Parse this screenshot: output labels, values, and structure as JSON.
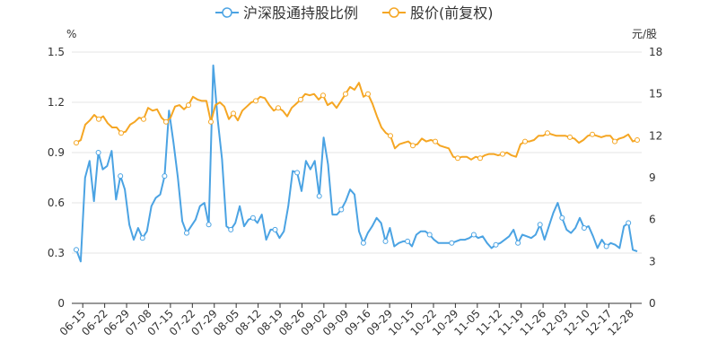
{
  "chart_data": {
    "type": "line",
    "title": "",
    "left_unit": "%",
    "right_unit": "元/股",
    "left_axis": {
      "min": 0,
      "max": 1.5,
      "ticks": [
        "0",
        "0.3",
        "0.6",
        "0.9",
        "1.2",
        "1.5"
      ]
    },
    "right_axis": {
      "min": 0,
      "max": 18,
      "ticks": [
        "0",
        "3",
        "6",
        "9",
        "12",
        "15",
        "18"
      ]
    },
    "x_tick_labels": [
      "06-15",
      "06-22",
      "06-29",
      "07-08",
      "07-15",
      "07-22",
      "07-29",
      "08-05",
      "08-12",
      "08-19",
      "08-26",
      "09-02",
      "09-09",
      "09-16",
      "09-29",
      "10-15",
      "10-22",
      "10-29",
      "11-05",
      "11-12",
      "11-19",
      "11-26",
      "12-03",
      "12-10",
      "12-17",
      "12-28"
    ],
    "grid": true,
    "legend_position": "top-center",
    "series": [
      {
        "name": "沪深股通持股比例",
        "axis": "left",
        "color": "#4ba3e3",
        "values": [
          0.32,
          0.25,
          0.75,
          0.85,
          0.61,
          0.9,
          0.8,
          0.82,
          0.91,
          0.62,
          0.76,
          0.68,
          0.47,
          0.38,
          0.45,
          0.39,
          0.43,
          0.58,
          0.63,
          0.65,
          0.76,
          1.15,
          0.96,
          0.75,
          0.49,
          0.42,
          0.46,
          0.5,
          0.58,
          0.6,
          0.47,
          1.42,
          1.1,
          0.86,
          0.46,
          0.44,
          0.48,
          0.58,
          0.46,
          0.5,
          0.51,
          0.48,
          0.53,
          0.38,
          0.44,
          0.44,
          0.39,
          0.43,
          0.58,
          0.79,
          0.78,
          0.67,
          0.85,
          0.8,
          0.85,
          0.64,
          0.99,
          0.83,
          0.53,
          0.53,
          0.56,
          0.61,
          0.68,
          0.65,
          0.43,
          0.36,
          0.42,
          0.46,
          0.51,
          0.48,
          0.37,
          0.45,
          0.34,
          0.36,
          0.37,
          0.37,
          0.34,
          0.41,
          0.43,
          0.43,
          0.41,
          0.38,
          0.36,
          0.36,
          0.36,
          0.36,
          0.37,
          0.38,
          0.38,
          0.39,
          0.41,
          0.39,
          0.4,
          0.36,
          0.33,
          0.35,
          0.36,
          0.38,
          0.4,
          0.44,
          0.36,
          0.41,
          0.4,
          0.39,
          0.41,
          0.47,
          0.38,
          0.46,
          0.54,
          0.6,
          0.51,
          0.44,
          0.42,
          0.45,
          0.51,
          0.45,
          0.46,
          0.4,
          0.33,
          0.38,
          0.34,
          0.36,
          0.35,
          0.33,
          0.46,
          0.48,
          0.32,
          0.31
        ]
      },
      {
        "name": "股价(前复权)",
        "axis": "right",
        "color": "#f5a623",
        "values": [
          11.5,
          11.7,
          12.8,
          13.1,
          13.5,
          13.2,
          13.4,
          12.9,
          12.6,
          12.6,
          12.2,
          12.3,
          12.8,
          13.0,
          13.3,
          13.2,
          14.0,
          13.8,
          13.9,
          13.3,
          13.0,
          13.3,
          14.1,
          14.2,
          13.9,
          14.2,
          14.8,
          14.6,
          14.5,
          14.5,
          13.0,
          14.2,
          14.4,
          14.1,
          13.2,
          13.6,
          13.1,
          13.8,
          14.1,
          14.4,
          14.5,
          14.8,
          14.7,
          14.2,
          13.8,
          14.0,
          13.8,
          13.4,
          14.0,
          14.3,
          14.6,
          15.0,
          14.9,
          15.0,
          14.6,
          14.9,
          14.2,
          14.4,
          14.0,
          14.5,
          15.0,
          15.5,
          15.3,
          15.8,
          14.8,
          15.0,
          14.3,
          13.4,
          12.6,
          12.2,
          12.0,
          11.1,
          11.4,
          11.5,
          11.6,
          11.3,
          11.4,
          11.8,
          11.6,
          11.7,
          11.6,
          11.3,
          11.2,
          11.1,
          10.5,
          10.4,
          10.5,
          10.5,
          10.3,
          10.5,
          10.4,
          10.6,
          10.7,
          10.7,
          10.6,
          10.7,
          10.8,
          10.6,
          10.5,
          11.4,
          11.6,
          11.6,
          11.7,
          12.0,
          12.0,
          12.2,
          12.1,
          12.0,
          12.0,
          12.0,
          11.9,
          11.8,
          11.5,
          11.7,
          12.0,
          12.1,
          12.0,
          11.9,
          12.0,
          12.0,
          11.6,
          11.8,
          11.9,
          12.1,
          11.6,
          11.7
        ]
      }
    ]
  }
}
